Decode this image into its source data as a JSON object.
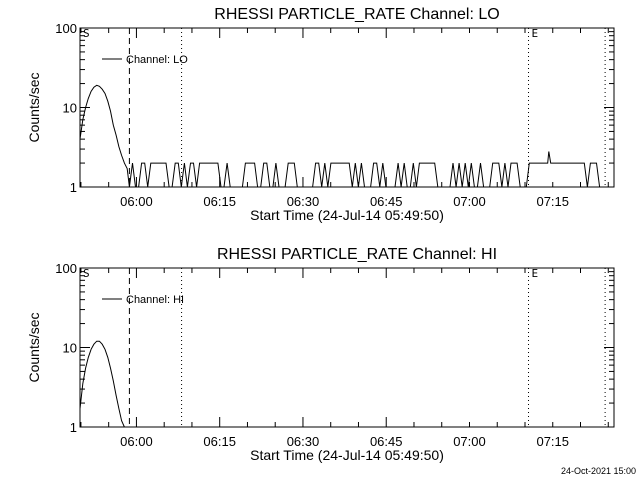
{
  "chart_data": [
    {
      "type": "line",
      "title": "RHESSI PARTICLE_RATE Channel: LO",
      "xlabel": "Start Time (24-Jul-14 05:49:50)",
      "ylabel": "Counts/sec",
      "yscale": "log",
      "ylim": [
        1,
        100
      ],
      "xlim_min_since_0549_50": [
        0,
        96.2
      ],
      "y_ticks": [
        "1",
        "10",
        "100"
      ],
      "x_tick_labels": [
        "06:00",
        "06:15",
        "06:30",
        "06:45",
        "07:00",
        "07:15"
      ],
      "legend": {
        "label": "Channel: LO",
        "position": "top-left"
      },
      "markers": [
        {
          "label": "S",
          "style": "solid",
          "time_min": 0
        },
        {
          "style": "dashed",
          "time_min": 8.9
        },
        {
          "style": "dotted",
          "time_min": 18.3
        },
        {
          "label": "E",
          "style": "dotted",
          "time_min": 80.8
        },
        {
          "style": "dotted",
          "time_min": 94.6
        }
      ],
      "series": [
        {
          "x": [
            0,
            0.5,
            1,
            1.5,
            2,
            2.5,
            3,
            3.5,
            4,
            4.5,
            5,
            5.5,
            6,
            6.5,
            7,
            7.5,
            8,
            8.5,
            8.9
          ],
          "y": [
            4,
            7,
            10,
            13,
            16,
            18,
            19,
            18.5,
            17,
            15,
            12,
            9,
            6,
            4.5,
            3.2,
            2.5,
            2,
            1.7,
            1
          ],
          "noise": {
            "x_start": 8.9,
            "x_end": 94.6,
            "low": 1,
            "high": 2,
            "spike_x": 84.5,
            "spike_y": 2.8
          }
        }
      ]
    },
    {
      "type": "line",
      "title": "RHESSI PARTICLE_RATE Channel: HI",
      "xlabel": "Start Time (24-Jul-14 05:49:50)",
      "ylabel": "Counts/sec",
      "yscale": "log",
      "ylim": [
        1,
        100
      ],
      "xlim_min_since_0549_50": [
        0,
        96.2
      ],
      "y_ticks": [
        "1",
        "10",
        "100"
      ],
      "x_tick_labels": [
        "06:00",
        "06:15",
        "06:30",
        "06:45",
        "07:00",
        "07:15"
      ],
      "legend": {
        "label": "Channel: HI",
        "position": "top-left"
      },
      "markers": [
        {
          "label": "S",
          "style": "solid",
          "time_min": 0
        },
        {
          "style": "dashed",
          "time_min": 8.9
        },
        {
          "style": "dotted",
          "time_min": 18.3
        },
        {
          "label": "E",
          "style": "dotted",
          "time_min": 80.8
        },
        {
          "style": "dotted",
          "time_min": 94.6
        }
      ],
      "series": [
        {
          "x": [
            0,
            0.5,
            1,
            1.5,
            2,
            2.5,
            3,
            3.5,
            4,
            4.5,
            5,
            5.5,
            6,
            6.5,
            7,
            7.5,
            8
          ],
          "y": [
            1.7,
            3.5,
            5.5,
            7.5,
            9.5,
            11,
            12,
            12,
            11,
            9.5,
            7.5,
            5.5,
            3.8,
            2.5,
            1.7,
            1.2,
            1
          ]
        }
      ]
    }
  ],
  "footer": {
    "timestamp": "24-Oct-2021 15:00"
  }
}
